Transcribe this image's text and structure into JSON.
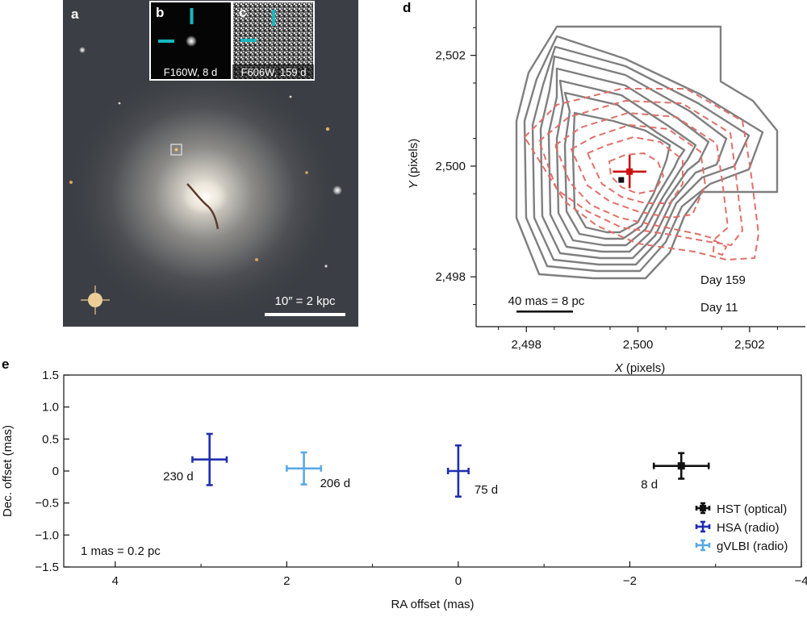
{
  "panels": {
    "a": {
      "letter": "a",
      "scale_bar_label": "10″ = 2 kpc",
      "inset_b": {
        "letter": "b",
        "caption": "F160W, 8 d"
      },
      "inset_c": {
        "letter": "c",
        "caption": "F606W, 159 d"
      }
    },
    "d": {
      "letter": "d",
      "xlabel_var": "X",
      "xlabel_unit": " (pixels)",
      "ylabel_var": "Y",
      "ylabel_unit": " (pixels)",
      "scale_bar_label": "40 mas = 8 pc",
      "legend_day159": "Day 159",
      "legend_day11": "Day 11",
      "colors": {
        "day159": "#e0706a",
        "day11": "#7f7f7f",
        "marker_red": "#cc1111",
        "marker_black": "#111111"
      }
    },
    "e": {
      "letter": "e",
      "scale_note": "1 mas = 0.2 pc",
      "colors": {
        "hst": "#111111",
        "hsa": "#1f2fb0",
        "gvlbi": "#5aa9e6"
      }
    }
  },
  "chart_data": [
    {
      "type": "scatter",
      "panel": "d",
      "title": "",
      "xlabel": "X (pixels)",
      "ylabel": "Y (pixels)",
      "xlim": [
        2497.1,
        2503.0
      ],
      "ylim": [
        2497.1,
        2503.0
      ],
      "xticks": [
        2498,
        2500,
        2502
      ],
      "yticks": [
        2498,
        2500,
        2502
      ],
      "xtick_labels": [
        "2,498",
        "2,500",
        "2,502"
      ],
      "ytick_labels": [
        "2,498",
        "2,500",
        "2,502"
      ],
      "series": [
        {
          "name": "Day 159",
          "x": [
            2499.85
          ],
          "y": [
            2499.9
          ],
          "xerr": [
            0.3
          ],
          "yerr": [
            0.3
          ]
        },
        {
          "name": "Day 11",
          "x": [
            2499.7
          ],
          "y": [
            2499.75
          ]
        }
      ]
    },
    {
      "type": "scatter",
      "panel": "e",
      "title": "",
      "xlabel": "RA offset (mas)",
      "ylabel": "Dec. offset (mas)",
      "xlim": [
        4.6,
        -4.0
      ],
      "ylim": [
        -1.5,
        1.5
      ],
      "xticks": [
        4,
        2,
        0,
        -2,
        -4
      ],
      "yticks": [
        1.5,
        1.0,
        0.5,
        0,
        -0.5,
        -1.0,
        -1.5
      ],
      "xtick_labels": [
        "4",
        "2",
        "0",
        "−2",
        "−4"
      ],
      "ytick_labels": [
        "1.5",
        "1.0",
        "0.5",
        "0",
        "−0.5",
        "−1.0",
        "−1.5"
      ],
      "legend_position": "bottom-right",
      "series": [
        {
          "name": "HST (optical)",
          "points": [
            {
              "x": -2.6,
              "y": 0.08,
              "xerr": 0.32,
              "yerr": 0.2,
              "label": "8 d"
            }
          ]
        },
        {
          "name": "HSA (radio)",
          "points": [
            {
              "x": 2.9,
              "y": 0.18,
              "xerr": 0.2,
              "yerr": 0.4,
              "label": "230 d"
            },
            {
              "x": 0.0,
              "y": 0.0,
              "xerr": 0.12,
              "yerr": 0.4,
              "label": "75 d"
            }
          ]
        },
        {
          "name": "gVLBI (radio)",
          "points": [
            {
              "x": 1.8,
              "y": 0.04,
              "xerr": 0.2,
              "yerr": 0.25,
              "label": "206 d"
            }
          ]
        }
      ]
    }
  ]
}
